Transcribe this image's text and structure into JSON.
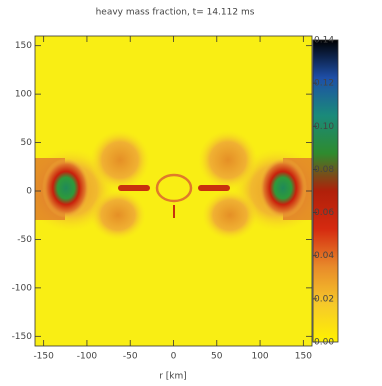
{
  "chart_data": {
    "type": "heatmap",
    "title": "heavy mass fraction, t= 14.112 ms",
    "x_label": "r [km]",
    "xlim": [
      -160,
      160
    ],
    "xticks": [
      -150,
      -100,
      -50,
      0,
      50,
      100,
      150
    ],
    "ylim": [
      -160,
      160
    ],
    "yticks": [
      -150,
      -100,
      -50,
      0,
      50,
      100,
      150
    ],
    "colorbar": {
      "lim": [
        0,
        0.14
      ],
      "ticks": [
        {
          "value": 0,
          "label": "0.00"
        },
        {
          "value": 0.02,
          "label": "0.02"
        },
        {
          "value": 0.04,
          "label": "0.04"
        },
        {
          "value": 0.06,
          "label": "0.06"
        },
        {
          "value": 0.08,
          "label": "0.08"
        },
        {
          "value": 0.1,
          "label": "0.10"
        },
        {
          "value": 0.12,
          "label": "0.12"
        },
        {
          "value": 0.14,
          "label": "0.14"
        }
      ],
      "colors": [
        "#fff200",
        "#f6c92a",
        "#e88a2a",
        "#d52a10",
        "#b0200a",
        "#2e8b2e",
        "#1a8a7a",
        "#1e4fa8",
        "#000000"
      ]
    }
  }
}
